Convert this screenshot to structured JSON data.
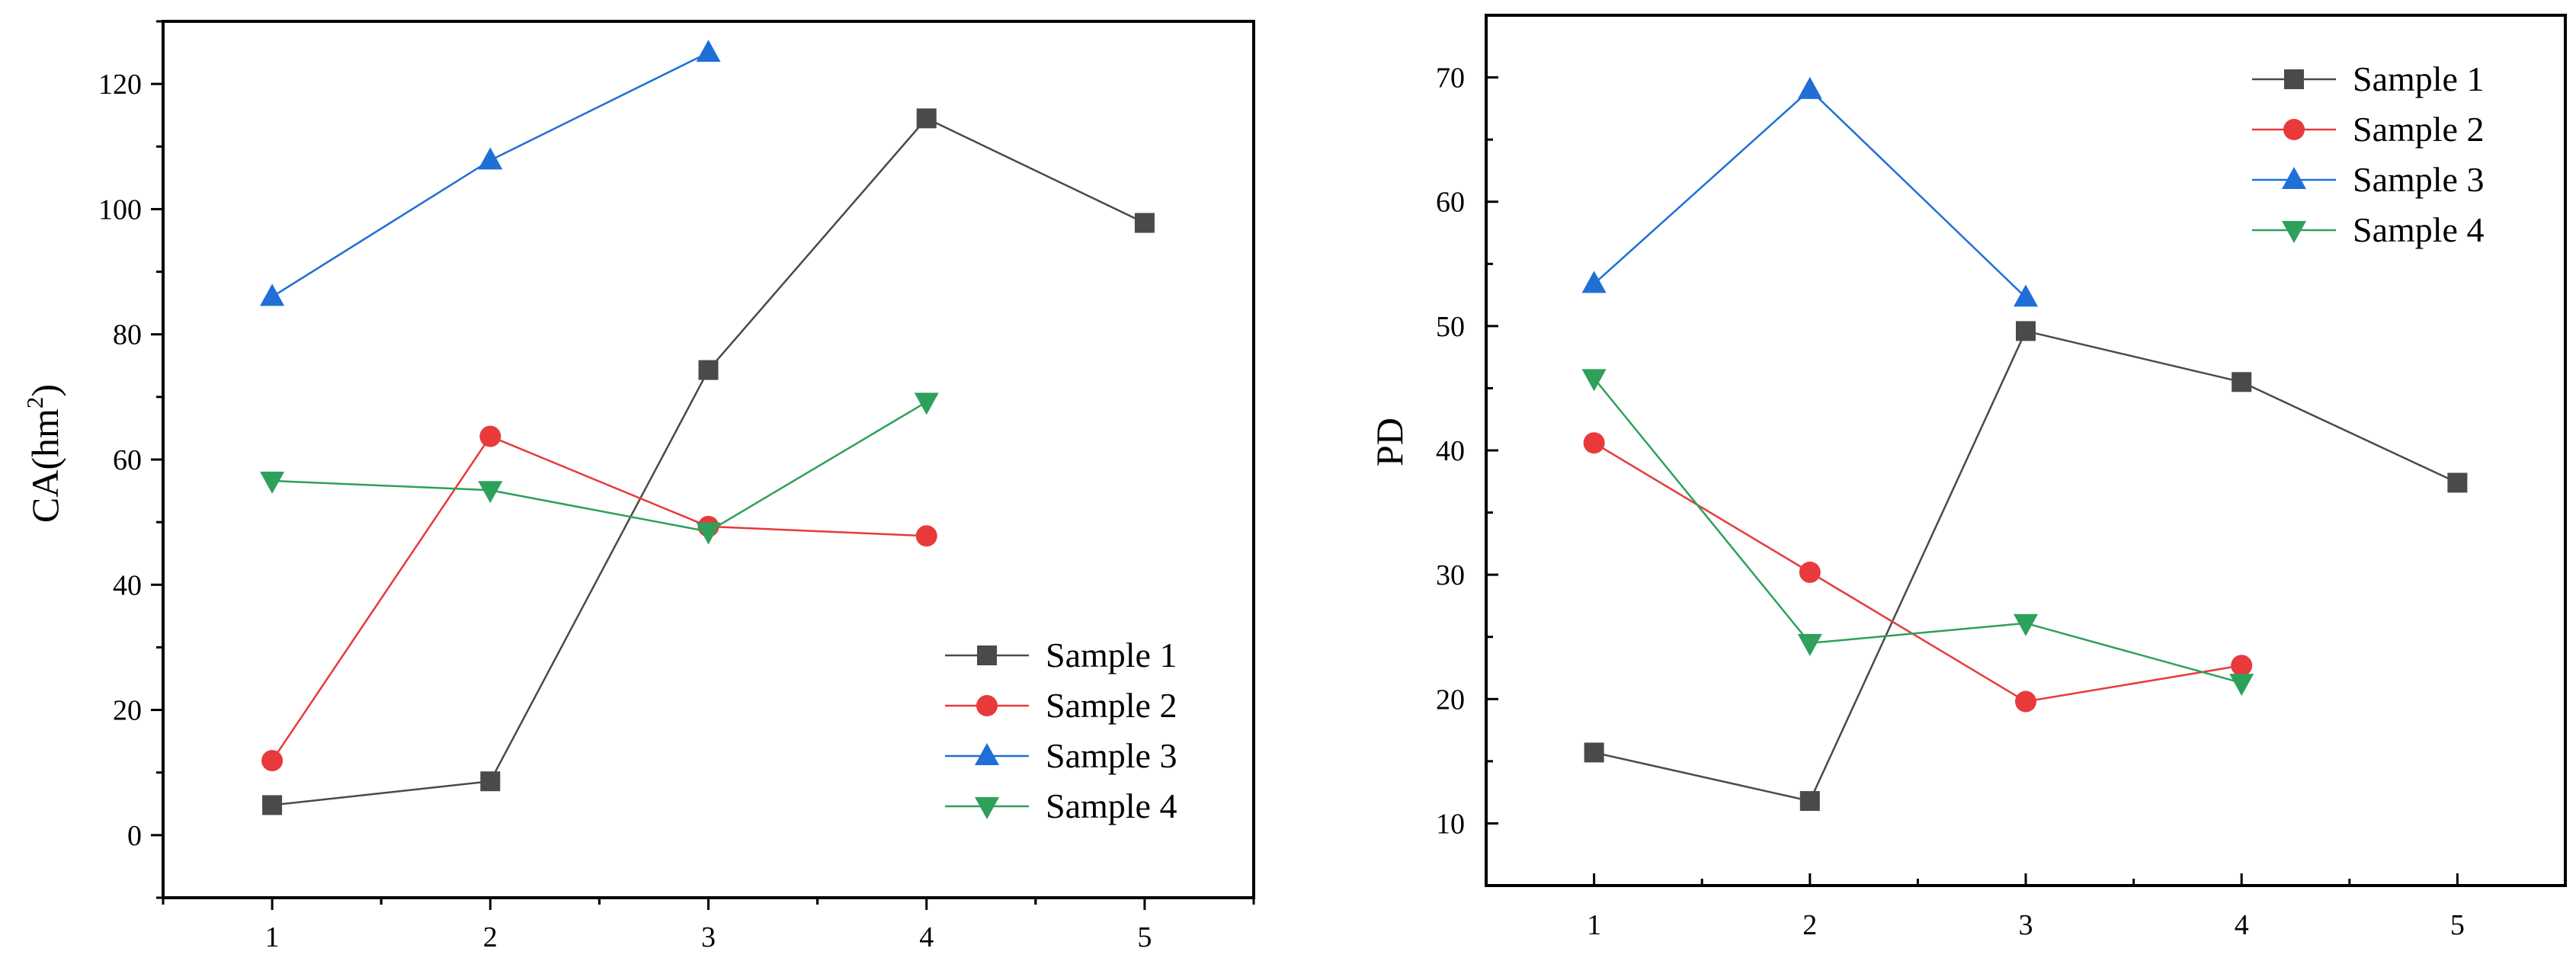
{
  "chart_data": [
    {
      "type": "line",
      "ylabel": "CA(hm",
      "ylabel_sup": "2",
      "ylabel_close": ")",
      "xlabel": "",
      "x_ticks": [
        "1",
        "2",
        "3",
        "4",
        "5"
      ],
      "y_ticks": [
        "0",
        "20",
        "40",
        "60",
        "80",
        "100",
        "120"
      ],
      "xlim": [
        0.5,
        5.5
      ],
      "ylim": [
        -10,
        130
      ],
      "legend_position": "bottom-right",
      "series": [
        {
          "name": "Sample 1",
          "color": "#4a4a4a",
          "marker": "square",
          "x": [
            1,
            2,
            3,
            4,
            5
          ],
          "y": [
            4.8,
            8.6,
            74.3,
            114.5,
            97.8
          ]
        },
        {
          "name": "Sample 2",
          "color": "#e8393b",
          "marker": "circle",
          "x": [
            1,
            2,
            3,
            4
          ],
          "y": [
            11.9,
            63.7,
            49.3,
            47.8
          ]
        },
        {
          "name": "Sample 3",
          "color": "#1f6fd6",
          "marker": "triangle-up",
          "x": [
            1,
            2,
            3
          ],
          "y": [
            86.0,
            107.8,
            125.0
          ]
        },
        {
          "name": "Sample 4",
          "color": "#2da05a",
          "marker": "triangle-down",
          "x": [
            1,
            2,
            3,
            4
          ],
          "y": [
            56.6,
            55.1,
            48.5,
            69.2
          ]
        }
      ]
    },
    {
      "type": "line",
      "ylabel": "PD",
      "xlabel": "",
      "x_ticks": [
        "1",
        "2",
        "3",
        "4",
        "5"
      ],
      "y_ticks": [
        "10",
        "20",
        "30",
        "40",
        "50",
        "60",
        "70"
      ],
      "xlim": [
        0.5,
        5.5
      ],
      "ylim": [
        5,
        75
      ],
      "legend_position": "top-right",
      "series": [
        {
          "name": "Sample 1",
          "color": "#4a4a4a",
          "marker": "square",
          "x": [
            1,
            2,
            3,
            4,
            5
          ],
          "y": [
            15.7,
            11.8,
            49.6,
            45.5,
            37.4
          ]
        },
        {
          "name": "Sample 2",
          "color": "#e8393b",
          "marker": "circle",
          "x": [
            1,
            2,
            3,
            4
          ],
          "y": [
            40.6,
            30.2,
            19.8,
            22.7
          ]
        },
        {
          "name": "Sample 3",
          "color": "#1f6fd6",
          "marker": "triangle-up",
          "x": [
            1,
            2,
            3
          ],
          "y": [
            53.4,
            69.0,
            52.3
          ]
        },
        {
          "name": "Sample 4",
          "color": "#2da05a",
          "marker": "triangle-down",
          "x": [
            1,
            2,
            3,
            4
          ],
          "y": [
            45.8,
            24.5,
            26.1,
            21.3
          ]
        }
      ]
    }
  ]
}
